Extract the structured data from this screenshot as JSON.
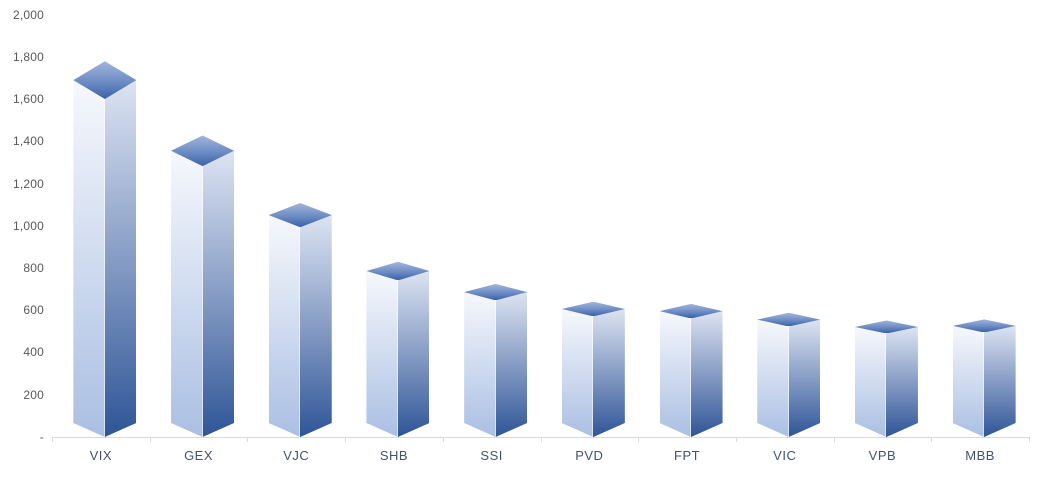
{
  "chart_data": {
    "type": "bar",
    "style": "3d-column",
    "title": "",
    "xlabel": "",
    "ylabel": "",
    "categories": [
      "VIX",
      "GEX",
      "VJC",
      "SHB",
      "SSI",
      "PVD",
      "FPT",
      "VIC",
      "VPB",
      "MBB"
    ],
    "values": [
      1690,
      1355,
      1050,
      785,
      685,
      605,
      595,
      555,
      520,
      525
    ],
    "ylim": [
      0,
      2000
    ],
    "ytick_step": 200,
    "ytick_labels_top_to_bottom": [
      "2,000",
      "1,800",
      "1,600",
      "1,400",
      "1,200",
      "1,000",
      "800",
      "600",
      "400",
      "200",
      "-"
    ],
    "grid": false,
    "legend": false,
    "colors": {
      "background": "#ffffff",
      "axis_line": "#d9d9d9",
      "ytick_text": "#595959",
      "category_text": "#44546a",
      "bar_top_light": "#a3b6db",
      "bar_top_mid": "#6d8cc4",
      "bar_top_dark": "#3a62a8",
      "bar_left_light": "#f6f8fc",
      "bar_left_dark": "#aabfe3",
      "bar_right_light": "#dde4f2",
      "bar_right_dark": "#2f5597"
    }
  }
}
